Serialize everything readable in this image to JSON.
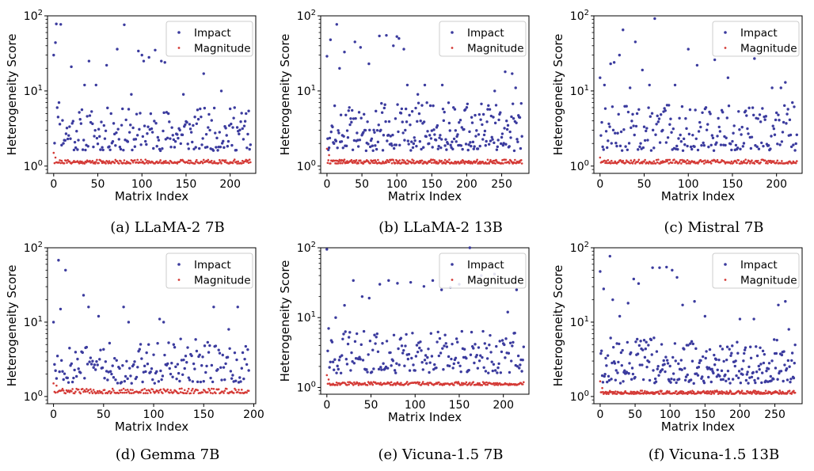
{
  "colors": {
    "impact": "#3b3b9e",
    "magnitude": "#d43a36"
  },
  "chart_data": [
    {
      "id": "a",
      "type": "scatter",
      "caption": "(a) LLaMA-2 7B",
      "xlabel": "Matrix Index",
      "ylabel": "Heterogeneity Score",
      "xlim": [
        -7,
        229
      ],
      "xticks": [
        0,
        50,
        100,
        150,
        200
      ],
      "ylim": [
        0.8,
        100
      ],
      "yscale": "log",
      "yticks": [
        {
          "value": 1,
          "base": "10",
          "exp": "0"
        },
        {
          "value": 10,
          "base": "10",
          "exp": "1"
        },
        {
          "value": 100,
          "base": "10",
          "exp": "2"
        }
      ],
      "legend": {
        "position": "upper-right"
      },
      "series": [
        {
          "name": "Impact",
          "color": "#3b3b9e",
          "n": 224,
          "seed": 11,
          "low": 1.6,
          "high": 6.0,
          "outliers": [
            [
              0,
              30
            ],
            [
              2,
              44
            ],
            [
              3,
              78
            ],
            [
              8,
              77
            ],
            [
              4,
              6
            ],
            [
              6,
              7
            ],
            [
              20,
              21
            ],
            [
              35,
              12
            ],
            [
              40,
              25
            ],
            [
              48,
              12
            ],
            [
              60,
              22
            ],
            [
              65,
              5
            ],
            [
              72,
              36
            ],
            [
              80,
              76
            ],
            [
              88,
              9
            ],
            [
              96,
              34
            ],
            [
              100,
              30
            ],
            [
              102,
              25
            ],
            [
              108,
              28
            ],
            [
              115,
              35
            ],
            [
              122,
              25
            ],
            [
              126,
              24
            ],
            [
              147,
              9
            ],
            [
              170,
              17
            ],
            [
              190,
              10
            ],
            [
              205,
              6
            ],
            [
              218,
              5
            ]
          ]
        },
        {
          "name": "Magnitude",
          "color": "#d43a36",
          "n": 224,
          "seed": 21,
          "low": 1.08,
          "high": 1.22,
          "outliers": [
            [
              0,
              1.5
            ],
            [
              2,
              1.3
            ]
          ]
        }
      ]
    },
    {
      "id": "b",
      "type": "scatter",
      "caption": "(b) LLaMA-2 13B",
      "xlabel": "Matrix Index",
      "ylabel": "Heterogeneity Score",
      "xlim": [
        -9,
        289
      ],
      "xticks": [
        0,
        50,
        100,
        150,
        200,
        250
      ],
      "ylim": [
        0.8,
        100
      ],
      "yscale": "log",
      "yticks": [
        {
          "value": 1,
          "base": "10",
          "exp": "0"
        },
        {
          "value": 10,
          "base": "10",
          "exp": "1"
        },
        {
          "value": 100,
          "base": "10",
          "exp": "2"
        }
      ],
      "legend": {
        "position": "upper-right"
      },
      "series": [
        {
          "name": "Impact",
          "color": "#3b3b9e",
          "n": 280,
          "seed": 12,
          "low": 1.6,
          "high": 7.0,
          "outliers": [
            [
              0,
              29
            ],
            [
              5,
              48
            ],
            [
              14,
              77
            ],
            [
              18,
              20
            ],
            [
              25,
              33
            ],
            [
              40,
              45
            ],
            [
              48,
              38
            ],
            [
              60,
              23
            ],
            [
              75,
              54
            ],
            [
              85,
              55
            ],
            [
              95,
              40
            ],
            [
              100,
              53
            ],
            [
              103,
              50
            ],
            [
              110,
              36
            ],
            [
              115,
              12
            ],
            [
              130,
              9
            ],
            [
              140,
              12
            ],
            [
              165,
              12
            ],
            [
              240,
              10
            ],
            [
              255,
              18
            ],
            [
              265,
              17
            ],
            [
              270,
              11
            ]
          ]
        },
        {
          "name": "Magnitude",
          "color": "#d43a36",
          "n": 280,
          "seed": 22,
          "low": 1.08,
          "high": 1.22,
          "outliers": [
            [
              0,
              1.7
            ],
            [
              3,
              1.4
            ]
          ]
        }
      ]
    },
    {
      "id": "c",
      "type": "scatter",
      "caption": "(c) Mistral 7B",
      "xlabel": "Matrix Index",
      "ylabel": "Heterogeneity Score",
      "xlim": [
        -7,
        229
      ],
      "xticks": [
        0,
        50,
        100,
        150,
        200
      ],
      "ylim": [
        0.8,
        100
      ],
      "yscale": "log",
      "yticks": [
        {
          "value": 1,
          "base": "10",
          "exp": "0"
        },
        {
          "value": 10,
          "base": "10",
          "exp": "1"
        },
        {
          "value": 100,
          "base": "10",
          "exp": "2"
        }
      ],
      "legend": {
        "position": "upper-right"
      },
      "series": [
        {
          "name": "Impact",
          "color": "#3b3b9e",
          "n": 224,
          "seed": 13,
          "low": 1.6,
          "high": 6.5,
          "outliers": [
            [
              0,
              15
            ],
            [
              5,
              12
            ],
            [
              12,
              23
            ],
            [
              16,
              24
            ],
            [
              22,
              30
            ],
            [
              26,
              65
            ],
            [
              34,
              11
            ],
            [
              40,
              45
            ],
            [
              48,
              19
            ],
            [
              56,
              12
            ],
            [
              62,
              92
            ],
            [
              85,
              12
            ],
            [
              100,
              36
            ],
            [
              110,
              22
            ],
            [
              130,
              26
            ],
            [
              145,
              15
            ],
            [
              175,
              27
            ],
            [
              195,
              11
            ],
            [
              205,
              11
            ],
            [
              210,
              13
            ],
            [
              218,
              7
            ]
          ]
        },
        {
          "name": "Magnitude",
          "color": "#d43a36",
          "n": 224,
          "seed": 23,
          "low": 1.08,
          "high": 1.22,
          "outliers": [
            [
              0,
              1.3
            ]
          ]
        }
      ]
    },
    {
      "id": "d",
      "type": "scatter",
      "caption": "(d) Gemma 7B",
      "xlabel": "Matrix Index",
      "ylabel": "Heterogeneity Score",
      "xlim": [
        -6,
        202
      ],
      "xticks": [
        0,
        50,
        100,
        150,
        200
      ],
      "ylim": [
        0.8,
        100
      ],
      "yscale": "log",
      "yticks": [
        {
          "value": 1,
          "base": "10",
          "exp": "0"
        },
        {
          "value": 10,
          "base": "10",
          "exp": "1"
        },
        {
          "value": 100,
          "base": "10",
          "exp": "2"
        }
      ],
      "legend": {
        "position": "upper-right"
      },
      "series": [
        {
          "name": "Impact",
          "color": "#3b3b9e",
          "n": 196,
          "seed": 14,
          "low": 1.5,
          "high": 6.0,
          "outliers": [
            [
              0,
              10
            ],
            [
              5,
              68
            ],
            [
              7,
              15
            ],
            [
              12,
              50
            ],
            [
              30,
              23
            ],
            [
              35,
              16
            ],
            [
              45,
              12
            ],
            [
              70,
              16
            ],
            [
              75,
              10
            ],
            [
              95,
              5
            ],
            [
              106,
              11
            ],
            [
              110,
              10
            ],
            [
              160,
              16
            ],
            [
              175,
              8
            ],
            [
              184,
              16
            ]
          ]
        },
        {
          "name": "Magnitude",
          "color": "#d43a36",
          "n": 196,
          "seed": 24,
          "low": 1.1,
          "high": 1.28,
          "outliers": [
            [
              0,
              1.5
            ],
            [
              3,
              1.4
            ]
          ]
        }
      ]
    },
    {
      "id": "e",
      "type": "scatter",
      "caption": "(e) Vicuna-1.5 7B",
      "xlabel": "Matrix Index",
      "ylabel": "Heterogeneity Score",
      "xlim": [
        -7,
        229
      ],
      "xticks": [
        0,
        50,
        100,
        150,
        200
      ],
      "ylim": [
        0.8,
        100
      ],
      "yscale": "log",
      "yticks": [
        {
          "value": 1,
          "base": "10",
          "exp": "0"
        },
        {
          "value": 10,
          "base": "10",
          "exp": "1"
        },
        {
          "value": 100,
          "base": "10",
          "exp": "2"
        }
      ],
      "legend": {
        "position": "upper-right"
      },
      "series": [
        {
          "name": "Impact",
          "color": "#3b3b9e",
          "n": 224,
          "seed": 15,
          "low": 1.6,
          "high": 6.5,
          "outliers": [
            [
              0,
              95
            ],
            [
              2,
              7
            ],
            [
              10,
              10
            ],
            [
              20,
              15
            ],
            [
              30,
              34
            ],
            [
              40,
              20
            ],
            [
              48,
              19
            ],
            [
              60,
              30
            ],
            [
              70,
              34
            ],
            [
              80,
              31
            ],
            [
              95,
              32
            ],
            [
              110,
              28
            ],
            [
              120,
              34
            ],
            [
              130,
              25
            ],
            [
              140,
              27
            ],
            [
              150,
              30
            ],
            [
              162,
              100
            ],
            [
              175,
              40
            ],
            [
              190,
              42
            ],
            [
              205,
              12
            ],
            [
              215,
              25
            ]
          ]
        },
        {
          "name": "Magnitude",
          "color": "#d43a36",
          "n": 224,
          "seed": 25,
          "low": 1.08,
          "high": 1.2,
          "outliers": [
            [
              0,
              1.5
            ],
            [
              2,
              1.3
            ]
          ]
        }
      ]
    },
    {
      "id": "f",
      "type": "scatter",
      "caption": "(f) Vicuna-1.5 13B",
      "xlabel": "Matrix Index",
      "ylabel": "Heterogeneity Score",
      "xlim": [
        -9,
        289
      ],
      "xticks": [
        0,
        50,
        100,
        150,
        200,
        250
      ],
      "ylim": [
        0.8,
        100
      ],
      "yscale": "log",
      "yticks": [
        {
          "value": 1,
          "base": "10",
          "exp": "0"
        },
        {
          "value": 10,
          "base": "10",
          "exp": "1"
        },
        {
          "value": 100,
          "base": "10",
          "exp": "2"
        }
      ],
      "legend": {
        "position": "upper-right"
      },
      "series": [
        {
          "name": "Impact",
          "color": "#3b3b9e",
          "n": 280,
          "seed": 16,
          "low": 1.5,
          "high": 6.5,
          "outliers": [
            [
              0,
              48
            ],
            [
              5,
              28
            ],
            [
              14,
              77
            ],
            [
              18,
              20
            ],
            [
              28,
              12
            ],
            [
              40,
              18
            ],
            [
              48,
              38
            ],
            [
              55,
              33
            ],
            [
              75,
              54
            ],
            [
              85,
              54
            ],
            [
              95,
              55
            ],
            [
              103,
              50
            ],
            [
              110,
              40
            ],
            [
              118,
              17
            ],
            [
              135,
              19
            ],
            [
              150,
              12
            ],
            [
              200,
              11
            ],
            [
              220,
              11
            ],
            [
              255,
              17
            ],
            [
              265,
              19
            ],
            [
              270,
              8
            ]
          ]
        },
        {
          "name": "Magnitude",
          "color": "#d43a36",
          "n": 280,
          "seed": 26,
          "low": 1.08,
          "high": 1.2,
          "outliers": [
            [
              0,
              1.6
            ],
            [
              3,
              1.3
            ]
          ]
        }
      ]
    }
  ]
}
